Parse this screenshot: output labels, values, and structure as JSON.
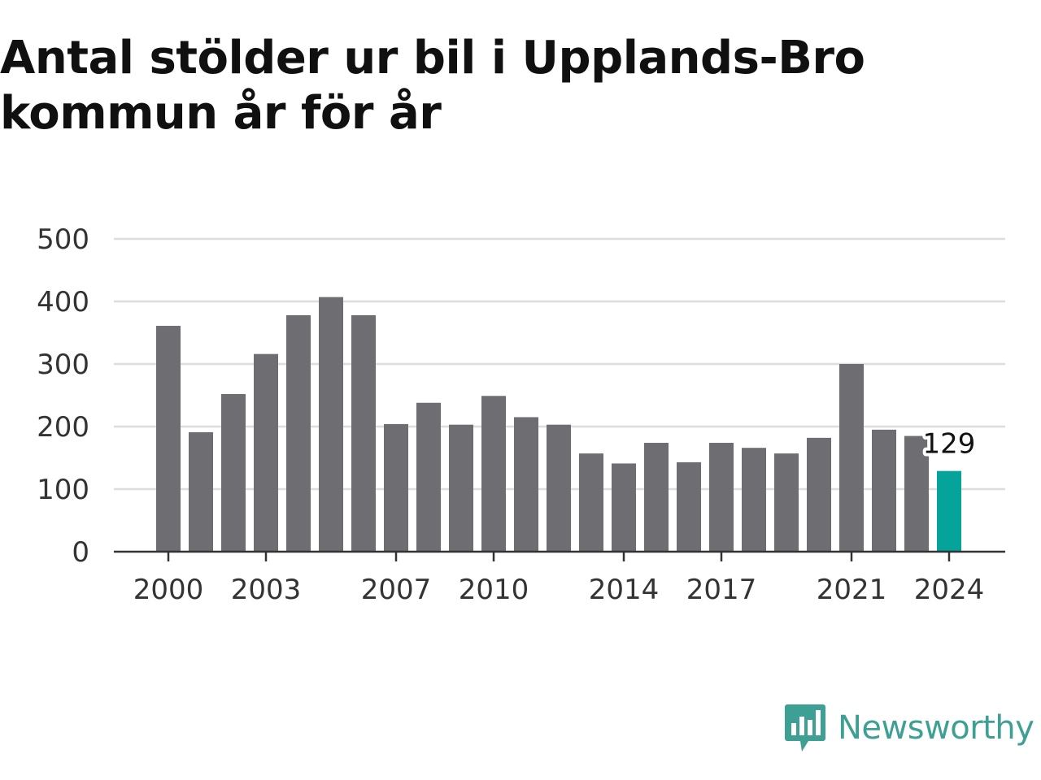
{
  "title": "Antal stölder ur bil i Upplands-Bro kommun år för år",
  "brand": {
    "name": "Newsworthy",
    "color": "#3e9f95",
    "icon": "newsworthy-logo-icon"
  },
  "colors": {
    "bar": "#6e6d72",
    "highlight": "#05a39a",
    "grid": "#dddddd",
    "axis": "#333333"
  },
  "chart_data": {
    "type": "bar",
    "title": "Antal stölder ur bil i Upplands-Bro kommun år för år",
    "xlabel": "",
    "ylabel": "",
    "categories": [
      "2000",
      "2001",
      "2002",
      "2003",
      "2004",
      "2005",
      "2006",
      "2007",
      "2008",
      "2009",
      "2010",
      "2011",
      "2012",
      "2013",
      "2014",
      "2015",
      "2016",
      "2017",
      "2018",
      "2019",
      "2020",
      "2021",
      "2022",
      "2023",
      "2024"
    ],
    "values": [
      361,
      191,
      252,
      316,
      378,
      407,
      378,
      204,
      238,
      203,
      249,
      215,
      203,
      157,
      141,
      174,
      143,
      174,
      166,
      157,
      182,
      300,
      195,
      185,
      129
    ],
    "ylim": [
      0,
      500
    ],
    "yticks": [
      0,
      100,
      200,
      300,
      400,
      500
    ],
    "xticks_shown": [
      "2000",
      "2003",
      "2007",
      "2010",
      "2014",
      "2017",
      "2021",
      "2024"
    ],
    "highlight_category": "2024",
    "data_labels": [
      {
        "category": "2024",
        "text": "129"
      }
    ],
    "grid": true,
    "legend": "none"
  }
}
